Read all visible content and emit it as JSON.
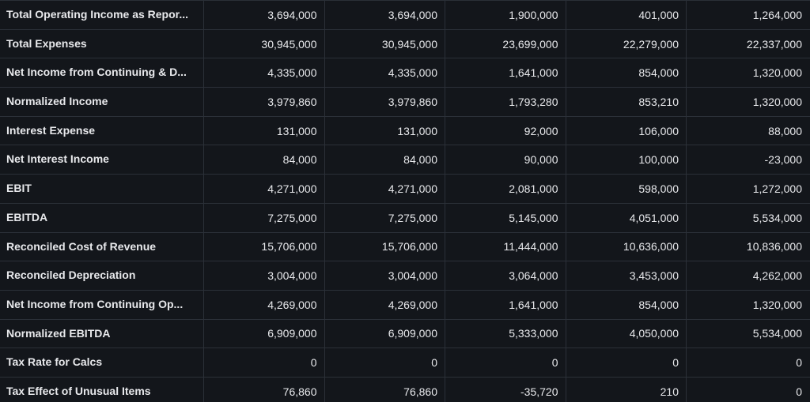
{
  "rows": [
    {
      "label": "Total Operating Income as Repor...",
      "values": [
        "3,694,000",
        "3,694,000",
        "1,900,000",
        "401,000",
        "1,264,000"
      ]
    },
    {
      "label": "Total Expenses",
      "values": [
        "30,945,000",
        "30,945,000",
        "23,699,000",
        "22,279,000",
        "22,337,000"
      ]
    },
    {
      "label": "Net Income from Continuing & D...",
      "values": [
        "4,335,000",
        "4,335,000",
        "1,641,000",
        "854,000",
        "1,320,000"
      ]
    },
    {
      "label": "Normalized Income",
      "values": [
        "3,979,860",
        "3,979,860",
        "1,793,280",
        "853,210",
        "1,320,000"
      ]
    },
    {
      "label": "Interest Expense",
      "values": [
        "131,000",
        "131,000",
        "92,000",
        "106,000",
        "88,000"
      ]
    },
    {
      "label": "Net Interest Income",
      "values": [
        "84,000",
        "84,000",
        "90,000",
        "100,000",
        "-23,000"
      ]
    },
    {
      "label": "EBIT",
      "values": [
        "4,271,000",
        "4,271,000",
        "2,081,000",
        "598,000",
        "1,272,000"
      ]
    },
    {
      "label": "EBITDA",
      "values": [
        "7,275,000",
        "7,275,000",
        "5,145,000",
        "4,051,000",
        "5,534,000"
      ]
    },
    {
      "label": "Reconciled Cost of Revenue",
      "values": [
        "15,706,000",
        "15,706,000",
        "11,444,000",
        "10,636,000",
        "10,836,000"
      ]
    },
    {
      "label": "Reconciled Depreciation",
      "values": [
        "3,004,000",
        "3,004,000",
        "3,064,000",
        "3,453,000",
        "4,262,000"
      ]
    },
    {
      "label": "Net Income from Continuing Op...",
      "values": [
        "4,269,000",
        "4,269,000",
        "1,641,000",
        "854,000",
        "1,320,000"
      ]
    },
    {
      "label": "Normalized EBITDA",
      "values": [
        "6,909,000",
        "6,909,000",
        "5,333,000",
        "4,050,000",
        "5,534,000"
      ]
    },
    {
      "label": "Tax Rate for Calcs",
      "values": [
        "0",
        "0",
        "0",
        "0",
        "0"
      ]
    },
    {
      "label": "Tax Effect of Unusual Items",
      "values": [
        "76,860",
        "76,860",
        "-35,720",
        "210",
        "0"
      ]
    }
  ]
}
